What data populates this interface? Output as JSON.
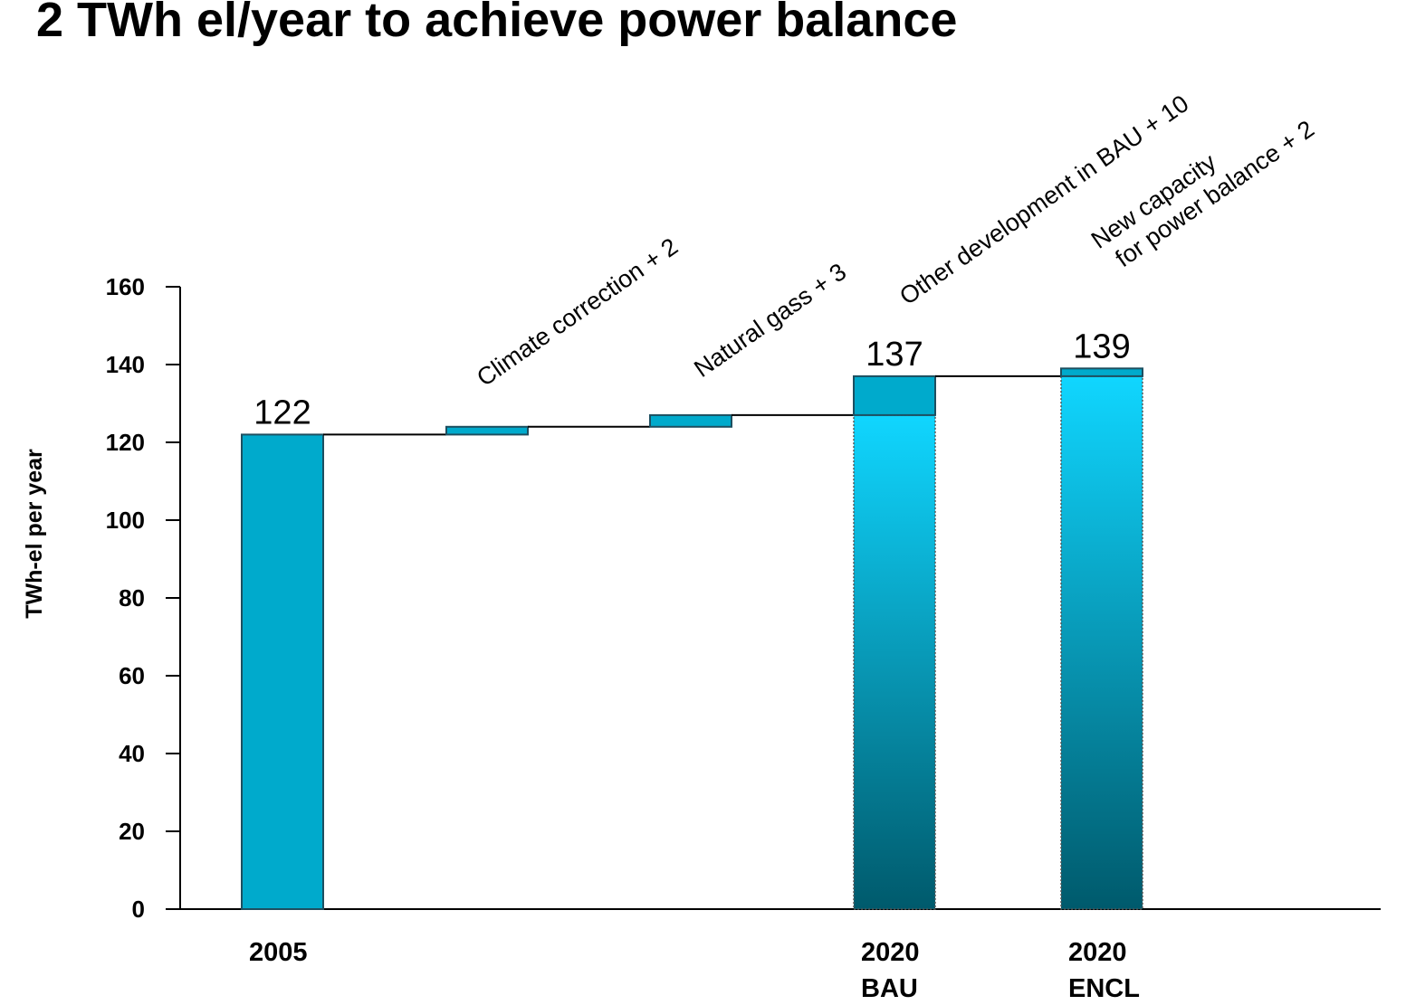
{
  "chart_data": {
    "type": "waterfall",
    "title": "2 TWh el/year to achieve power balance",
    "y_label": "TWh-el per year",
    "categories": [
      [
        "2005"
      ],
      null,
      null,
      [
        "2020",
        "BAU"
      ],
      [
        "2020",
        "ENCL"
      ]
    ],
    "values": [
      122,
      2,
      3,
      10,
      2
    ],
    "totals": [
      122,
      null,
      null,
      137,
      139
    ],
    "annotations": [
      null,
      [
        "Climate correction + 2"
      ],
      [
        "Natural gass + 3"
      ],
      [
        "Other development in BAU + 10"
      ],
      [
        "New capacity",
        "for power balance + 2"
      ]
    ],
    "color": "#00aacc",
    "gradient": [
      "#10d6ff",
      "#005a6c"
    ],
    "ylim": [
      0,
      160
    ],
    "yticks": [
      0,
      20,
      40,
      60,
      80,
      100,
      120,
      140,
      160
    ]
  }
}
